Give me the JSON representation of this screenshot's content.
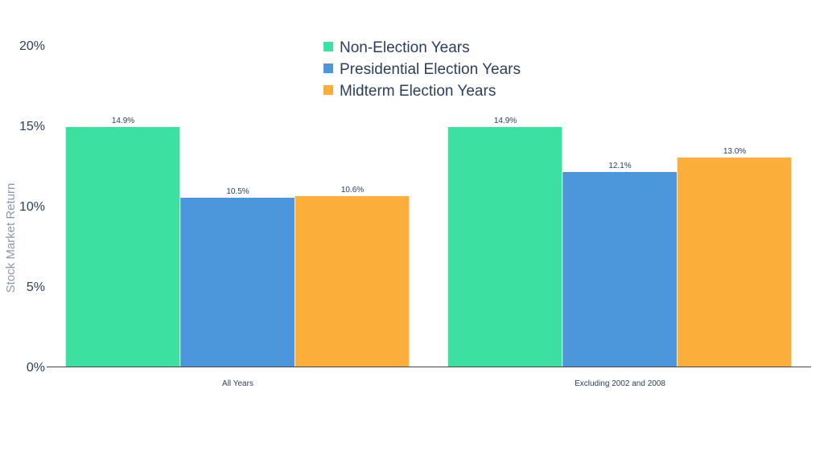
{
  "chart_data": {
    "type": "bar",
    "title": "",
    "xlabel": "",
    "ylabel": "Stock Market Return",
    "ylim": [
      0,
      20
    ],
    "yticks": [
      0,
      5,
      10,
      15,
      20
    ],
    "ytick_labels": [
      "0%",
      "5%",
      "10%",
      "15%",
      "20%"
    ],
    "grid": false,
    "legend_position": "top-center",
    "categories": [
      "All Years",
      "Excluding 2002 and 2008"
    ],
    "series": [
      {
        "name": "Non-Election Years",
        "color": "#3ce0a0",
        "values": [
          14.9,
          14.9
        ],
        "labels": [
          "14.9%",
          "14.9%"
        ]
      },
      {
        "name": "Presidential Election Years",
        "color": "#4c96dc",
        "values": [
          10.5,
          12.1
        ],
        "labels": [
          "10.5%",
          "12.1%"
        ]
      },
      {
        "name": "Midterm Election Years",
        "color": "#fcae3a",
        "values": [
          10.6,
          13.0
        ],
        "labels": [
          "10.6%",
          "13.0%"
        ]
      }
    ],
    "colors": {
      "text": "#2a3f5f",
      "axis_title": "#8c99ab",
      "axis_line": "#444444",
      "background": "#ffffff"
    }
  }
}
